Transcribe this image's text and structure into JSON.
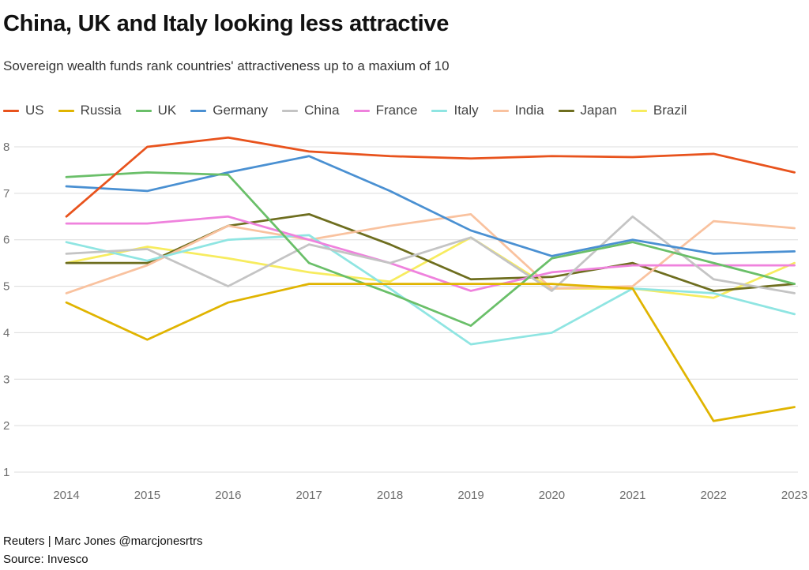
{
  "title": "China, UK and Italy looking less attractive",
  "subtitle": "Sovereign wealth funds rank countries' attractiveness up to a maxium of 10",
  "footer": {
    "line1": "Reuters | Marc Jones @marcjonesrtrs",
    "line2": "Source: Invesco"
  },
  "colors": {
    "grid": "#dcdcdc",
    "axis_text": "#6e6e6e",
    "title_text": "#111111"
  },
  "chart_data": {
    "type": "line",
    "title": "China, UK and Italy looking less attractive",
    "subtitle": "Sovereign wealth funds rank countries' attractiveness up to a maxium of 10",
    "x": [
      2014,
      2015,
      2016,
      2017,
      2018,
      2019,
      2020,
      2021,
      2022,
      2023
    ],
    "xlabel": "",
    "ylabel": "",
    "ylim": [
      1,
      8
    ],
    "yticks": [
      1,
      2,
      3,
      4,
      5,
      6,
      7,
      8
    ],
    "grid": true,
    "legend_position": "top",
    "series": [
      {
        "name": "US",
        "color": "#e8531d",
        "values": [
          6.5,
          8.0,
          8.2,
          7.9,
          7.8,
          7.75,
          7.8,
          7.78,
          7.85,
          7.45
        ]
      },
      {
        "name": "Russia",
        "color": "#e0b400",
        "values": [
          4.65,
          3.85,
          4.65,
          5.05,
          5.05,
          5.05,
          5.05,
          4.95,
          2.1,
          2.4
        ]
      },
      {
        "name": "UK",
        "color": "#6abf69",
        "values": [
          7.35,
          7.45,
          7.4,
          5.5,
          4.85,
          4.15,
          5.6,
          5.95,
          5.5,
          5.05
        ]
      },
      {
        "name": "Germany",
        "color": "#4a90d2",
        "values": [
          7.15,
          7.05,
          7.45,
          7.8,
          7.05,
          6.2,
          5.65,
          6.0,
          5.7,
          5.75
        ]
      },
      {
        "name": "China",
        "color": "#c4c4c4",
        "values": [
          5.7,
          5.8,
          5.0,
          5.9,
          5.5,
          6.05,
          4.9,
          6.5,
          5.15,
          4.85
        ]
      },
      {
        "name": "France",
        "color": "#ef82dd",
        "values": [
          6.35,
          6.35,
          6.5,
          6.0,
          5.5,
          4.9,
          5.3,
          5.45,
          5.45,
          5.45
        ]
      },
      {
        "name": "Italy",
        "color": "#8fe5e2",
        "values": [
          5.95,
          5.55,
          6.0,
          6.1,
          4.95,
          3.75,
          4.0,
          4.95,
          4.85,
          4.4
        ]
      },
      {
        "name": "India",
        "color": "#f9c29f",
        "values": [
          4.85,
          5.45,
          6.3,
          6.0,
          6.3,
          6.55,
          4.95,
          5.0,
          6.4,
          6.25
        ]
      },
      {
        "name": "Japan",
        "color": "#6e6e1f",
        "values": [
          5.5,
          5.5,
          6.3,
          6.55,
          5.9,
          5.15,
          5.2,
          5.5,
          4.9,
          5.05
        ]
      },
      {
        "name": "Brazil",
        "color": "#f7ec5f",
        "values": [
          5.5,
          5.85,
          5.6,
          5.3,
          5.1,
          6.05,
          4.95,
          4.95,
          4.75,
          5.5
        ]
      }
    ]
  }
}
